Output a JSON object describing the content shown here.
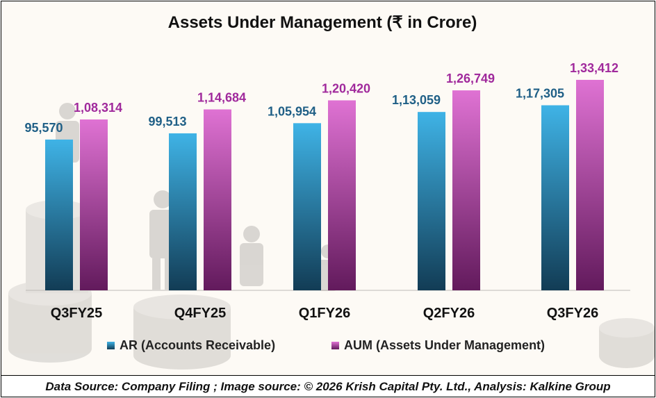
{
  "chart_data": {
    "type": "bar",
    "title": "Assets Under Management (₹ in Crore)",
    "categories": [
      "Q3FY25",
      "Q4FY25",
      "Q1FY26",
      "Q2FY26",
      "Q3FY26"
    ],
    "series": [
      {
        "name": "AR (Accounts Receivable)",
        "values": [
          95570,
          99513,
          105954,
          113059,
          117305
        ],
        "labels": [
          "95,570",
          "99,513",
          "1,05,954",
          "1,13,059",
          "1,17,305"
        ],
        "color_top": "#3fb3e6",
        "color_bottom": "#123c55",
        "label_color": "#1f5f86"
      },
      {
        "name": "AUM (Assets Under Management)",
        "values": [
          108314,
          114684,
          120420,
          126749,
          133412
        ],
        "labels": [
          "1,08,314",
          "1,14,684",
          "1,20,420",
          "1,26,749",
          "1,33,412"
        ],
        "color_top": "#df72d3",
        "color_bottom": "#621a5c",
        "label_color": "#a0299c"
      }
    ],
    "ylim": [
      0,
      140000
    ],
    "grid": false,
    "legend_position": "bottom"
  },
  "footer": {
    "source_text": "Data Source: Company Filing ; Image source: © 2026 Krish Capital Pty. Ltd., Analysis: Kalkine Group"
  }
}
